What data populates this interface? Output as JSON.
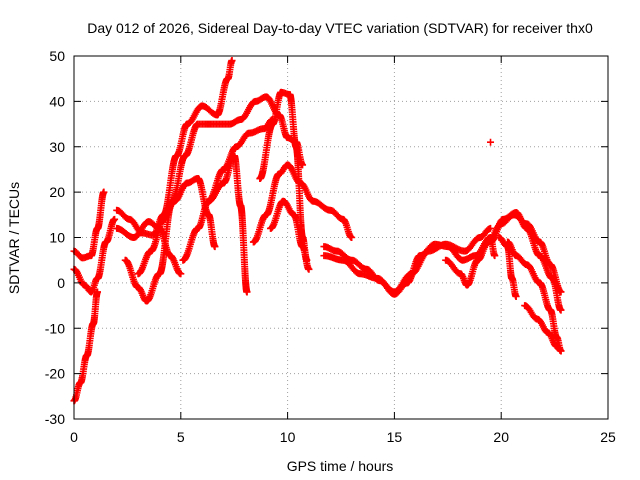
{
  "chart_data": {
    "type": "scatter",
    "title": "Day 012 of 2026, Sidereal Day-to-day VTEC variation (SDTVAR) for receiver thx0",
    "xlabel": "GPS time / hours",
    "ylabel": "SDTVAR / TECUs",
    "xlim": [
      0,
      25
    ],
    "ylim": [
      -30,
      50
    ],
    "x_ticks": [
      0,
      5,
      10,
      15,
      20,
      25
    ],
    "y_ticks": [
      -30,
      -20,
      -10,
      0,
      10,
      20,
      30,
      40,
      50
    ],
    "grid": true,
    "marker": "plus",
    "color": "#ff0000",
    "series": [
      {
        "name": "track-1",
        "points": [
          [
            0,
            -26
          ],
          [
            0.3,
            -22
          ],
          [
            0.6,
            -16
          ],
          [
            0.9,
            -9
          ],
          [
            1.1,
            -2
          ]
        ]
      },
      {
        "name": "track-2",
        "points": [
          [
            0,
            7
          ],
          [
            0.4,
            5.5
          ],
          [
            0.8,
            6
          ],
          [
            1.1,
            12
          ],
          [
            1.4,
            20
          ]
        ]
      },
      {
        "name": "track-3",
        "points": [
          [
            0,
            3
          ],
          [
            0.5,
            -0.5
          ],
          [
            0.8,
            -2
          ],
          [
            1.1,
            1
          ],
          [
            1.5,
            9
          ],
          [
            1.9,
            14
          ]
        ]
      },
      {
        "name": "track-4",
        "points": [
          [
            2,
            16
          ],
          [
            2.6,
            14
          ],
          [
            3.2,
            11
          ],
          [
            3.7,
            10.5
          ],
          [
            4.2,
            15
          ],
          [
            4.8,
            28
          ],
          [
            5.3,
            35
          ],
          [
            6,
            39
          ],
          [
            6.7,
            37
          ],
          [
            7.2,
            45
          ],
          [
            7.4,
            49
          ]
        ]
      },
      {
        "name": "track-5",
        "points": [
          [
            2,
            12
          ],
          [
            2.8,
            10
          ],
          [
            3.5,
            13.5
          ],
          [
            4,
            12
          ],
          [
            4.5,
            6
          ],
          [
            5,
            2
          ]
        ]
      },
      {
        "name": "track-6",
        "points": [
          [
            2.4,
            5
          ],
          [
            3,
            -1
          ],
          [
            3.4,
            -4
          ],
          [
            4,
            2
          ],
          [
            4.6,
            18
          ],
          [
            5.2,
            28
          ],
          [
            5.8,
            35
          ],
          [
            6.6,
            35
          ],
          [
            7.3,
            35
          ],
          [
            7.8,
            36
          ],
          [
            8.5,
            40
          ],
          [
            9,
            41
          ],
          [
            9.6,
            37
          ],
          [
            10,
            32
          ],
          [
            10.4,
            31
          ],
          [
            10.7,
            26
          ]
        ]
      },
      {
        "name": "track-7",
        "points": [
          [
            3,
            2
          ],
          [
            3.6,
            7
          ],
          [
            4.2,
            14
          ],
          [
            4.7,
            18
          ],
          [
            5.3,
            22
          ],
          [
            5.8,
            23
          ],
          [
            6.3,
            15
          ],
          [
            6.6,
            8
          ]
        ]
      },
      {
        "name": "track-8",
        "points": [
          [
            5.1,
            5
          ],
          [
            5.8,
            12
          ],
          [
            6.3,
            18
          ],
          [
            7,
            22
          ],
          [
            7.5,
            28
          ],
          [
            7.8,
            17
          ],
          [
            8.1,
            -2
          ]
        ]
      },
      {
        "name": "track-9",
        "points": [
          [
            6.3,
            18
          ],
          [
            7,
            25
          ],
          [
            7.6,
            30
          ],
          [
            8.2,
            33
          ],
          [
            8.9,
            34
          ],
          [
            9.3,
            36
          ]
        ]
      },
      {
        "name": "track-10",
        "points": [
          [
            8.4,
            9
          ],
          [
            9,
            15
          ],
          [
            9.6,
            24
          ],
          [
            10,
            26
          ],
          [
            10.6,
            22
          ],
          [
            11.2,
            18
          ],
          [
            12,
            16
          ],
          [
            12.6,
            14
          ],
          [
            13,
            10
          ]
        ]
      },
      {
        "name": "track-11",
        "points": [
          [
            8.7,
            23
          ],
          [
            9.3,
            35
          ],
          [
            9.7,
            42
          ],
          [
            10.1,
            41.5
          ],
          [
            10.4,
            30
          ],
          [
            10.7,
            10
          ],
          [
            10.9,
            5
          ]
        ]
      },
      {
        "name": "track-12",
        "points": [
          [
            9.2,
            12
          ],
          [
            9.8,
            18
          ],
          [
            10.3,
            15
          ],
          [
            10.7,
            8
          ],
          [
            11,
            3
          ]
        ]
      },
      {
        "name": "track-13",
        "points": [
          [
            11.7,
            8
          ],
          [
            12.3,
            7
          ],
          [
            13,
            5
          ],
          [
            13.7,
            3
          ],
          [
            14.3,
            0.5
          ],
          [
            15,
            -2.5
          ],
          [
            15.6,
            0
          ],
          [
            16.2,
            6
          ],
          [
            16.9,
            8.5
          ],
          [
            17.5,
            8
          ],
          [
            18.2,
            5
          ],
          [
            18.8,
            6
          ],
          [
            19.5,
            10
          ],
          [
            19.7,
            6
          ]
        ]
      },
      {
        "name": "track-14",
        "points": [
          [
            11.7,
            6
          ],
          [
            12.6,
            5
          ],
          [
            13.4,
            2
          ],
          [
            14.2,
            1
          ],
          [
            15,
            -2
          ],
          [
            15.8,
            2
          ],
          [
            16.6,
            7
          ],
          [
            17.4,
            8.5
          ],
          [
            18.3,
            7
          ],
          [
            19,
            10
          ],
          [
            19.5,
            12
          ]
        ]
      },
      {
        "name": "track-15",
        "points": [
          [
            17.4,
            5
          ],
          [
            18.1,
            2
          ],
          [
            18.4,
            -0.5
          ],
          [
            18.9,
            5
          ],
          [
            19.4,
            9
          ],
          [
            20,
            13
          ],
          [
            20.6,
            15
          ],
          [
            21.2,
            13
          ],
          [
            21.8,
            9
          ],
          [
            22.3,
            4
          ],
          [
            22.8,
            -2
          ]
        ]
      },
      {
        "name": "track-16",
        "points": [
          [
            19.5,
            9
          ],
          [
            20.1,
            14
          ],
          [
            20.7,
            15.5
          ],
          [
            21.2,
            12
          ],
          [
            21.8,
            6
          ],
          [
            22.4,
            1
          ],
          [
            22.8,
            -6
          ]
        ]
      },
      {
        "name": "track-17",
        "points": [
          [
            20.3,
            9
          ],
          [
            20.7,
            6
          ],
          [
            21.2,
            4
          ],
          [
            21.8,
            0
          ],
          [
            22.3,
            -6
          ],
          [
            22.6,
            -12
          ],
          [
            22.8,
            -15
          ]
        ]
      },
      {
        "name": "track-18",
        "points": [
          [
            21.1,
            -5
          ],
          [
            21.7,
            -8
          ],
          [
            22.2,
            -11
          ],
          [
            22.6,
            -14
          ],
          [
            22.8,
            -15
          ]
        ]
      },
      {
        "name": "track-19",
        "points": [
          [
            19.9,
            10
          ],
          [
            20.3,
            8
          ],
          [
            20.5,
            1
          ],
          [
            20.7,
            -3
          ]
        ]
      },
      {
        "name": "track-20",
        "points": [
          [
            19.5,
            31
          ]
        ]
      }
    ]
  }
}
